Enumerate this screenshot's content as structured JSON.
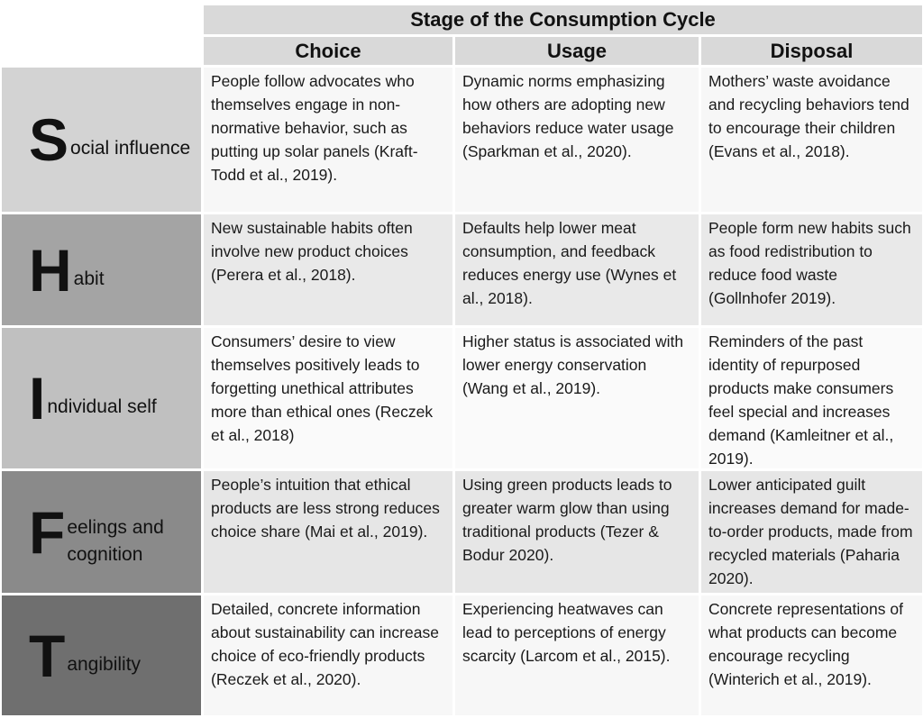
{
  "header": {
    "title": "Stage of the Consumption Cycle",
    "columns": [
      "Choice",
      "Usage",
      "Disposal"
    ]
  },
  "rows": [
    {
      "letter": "S",
      "label": "ocial influence",
      "cells": [
        "People follow advocates who themselves engage in non-normative behavior, such as putting up solar panels (Kraft-Todd et al., 2019).",
        "Dynamic norms emphasizing how others are adopting new behaviors reduce water usage (Sparkman et al., 2020).",
        "Mothers’ waste avoidance and recycling behaviors tend to encourage their children (Evans et al., 2018)."
      ]
    },
    {
      "letter": "H",
      "label": "abit",
      "cells": [
        "New sustainable habits often involve new product choices (Perera et al., 2018).",
        "Defaults help lower meat consumption, and feedback reduces energy use (Wynes et al., 2018).",
        "People form new habits such as food redistribution to reduce food waste (Gollnhofer 2019)."
      ]
    },
    {
      "letter": "I",
      "label": "ndividual self",
      "cells": [
        "Consumers’ desire to view themselves positively leads to forgetting unethical attributes more than ethical ones (Reczek et al., 2018)",
        "Higher status is associated with lower energy conservation (Wang et al., 2019).",
        "Reminders of the past identity of repurposed products make consumers feel special and increases demand (Kamleitner et al., 2019)."
      ]
    },
    {
      "letter": "F",
      "label": "eelings and cognition",
      "cells": [
        "People’s intuition that ethical products are less strong reduces choice share (Mai et al., 2019).",
        "Using green products leads to greater warm glow than using traditional products (Tezer & Bodur 2020).",
        "Lower anticipated guilt increases demand for made-to-order products, made from recycled materials (Paharia 2020)."
      ]
    },
    {
      "letter": "T",
      "label": "angibility",
      "cells": [
        "Detailed, concrete information about sustainability can increase choice of eco-friendly products (Reczek et al., 2020).",
        "Experiencing heatwaves can lead to perceptions of energy scarcity (Larcom et al., 2015).",
        "Concrete representations of what products can become encourage recycling (Winterich et al., 2019)."
      ]
    }
  ]
}
